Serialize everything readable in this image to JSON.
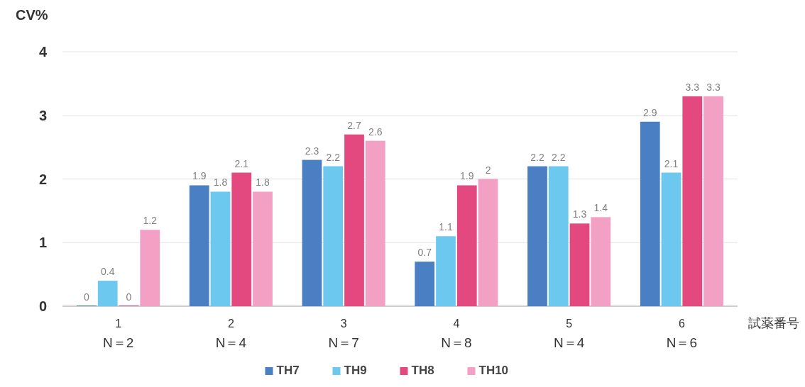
{
  "chart_data": {
    "type": "bar",
    "ylabel": "CV%",
    "xlabel": "試薬番号",
    "categories": [
      "1\nN＝2",
      "2\nN＝4",
      "3\nN＝7",
      "4\nN＝8",
      "5\nN＝4",
      "6\nN＝6"
    ],
    "series": [
      {
        "name": "TH7",
        "color": "#4a7fc4",
        "values": [
          0,
          1.9,
          2.3,
          0.7,
          2.2,
          2.9
        ]
      },
      {
        "name": "TH9",
        "color": "#6dc8f0",
        "values": [
          0.4,
          1.8,
          2.2,
          1.1,
          2.2,
          2.1
        ]
      },
      {
        "name": "TH8",
        "color": "#e3497f",
        "values": [
          0,
          2.1,
          2.7,
          1.9,
          1.3,
          3.3
        ]
      },
      {
        "name": "TH10",
        "color": "#f2a0c4",
        "values": [
          1.2,
          1.8,
          2.6,
          2,
          1.4,
          3.3
        ]
      }
    ],
    "ylim": [
      0,
      4
    ],
    "yticks": [
      0,
      1,
      2,
      3,
      4
    ],
    "grid": "y",
    "legend": "bottom",
    "data_labels": true
  }
}
